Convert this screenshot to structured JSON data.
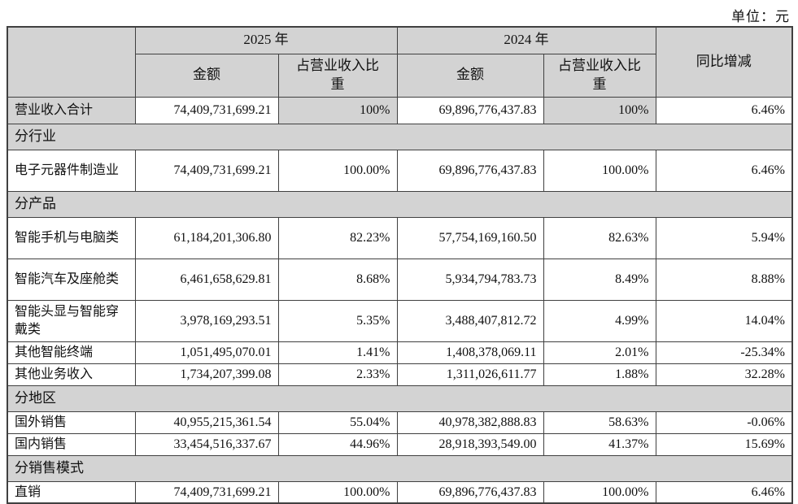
{
  "unit_label": "单位：元",
  "table": {
    "headers": {
      "year_2025": "2025 年",
      "year_2024": "2024 年",
      "amount": "金额",
      "pct_of_revenue": "占营业收入比重",
      "yoy": "同比增减"
    },
    "rows": [
      {
        "type": "data",
        "label": "营业收入合计",
        "amount_2025": "74,409,731,699.21",
        "pct_2025": "100%",
        "amount_2024": "69,896,776,437.83",
        "pct_2024": "100%",
        "yoy": "6.46%"
      },
      {
        "type": "section",
        "label": "分行业"
      },
      {
        "type": "data",
        "label": "电子元器件制造业",
        "amount_2025": "74,409,731,699.21",
        "pct_2025": "100.00%",
        "amount_2024": "69,896,776,437.83",
        "pct_2024": "100.00%",
        "yoy": "6.46%"
      },
      {
        "type": "section",
        "label": "分产品"
      },
      {
        "type": "data",
        "label": "智能手机与电脑类",
        "amount_2025": "61,184,201,306.80",
        "pct_2025": "82.23%",
        "amount_2024": "57,754,169,160.50",
        "pct_2024": "82.63%",
        "yoy": "5.94%"
      },
      {
        "type": "data",
        "label": "智能汽车及座舱类",
        "amount_2025": "6,461,658,629.81",
        "pct_2025": "8.68%",
        "amount_2024": "5,934,794,783.73",
        "pct_2024": "8.49%",
        "yoy": "8.88%"
      },
      {
        "type": "data",
        "label": "智能头显与智能穿戴类",
        "amount_2025": "3,978,169,293.51",
        "pct_2025": "5.35%",
        "amount_2024": "3,488,407,812.72",
        "pct_2024": "4.99%",
        "yoy": "14.04%"
      },
      {
        "type": "data",
        "label": "其他智能终端",
        "amount_2025": "1,051,495,070.01",
        "pct_2025": "1.41%",
        "amount_2024": "1,408,378,069.11",
        "pct_2024": "2.01%",
        "yoy": "-25.34%"
      },
      {
        "type": "data",
        "label": "其他业务收入",
        "amount_2025": "1,734,207,399.08",
        "pct_2025": "2.33%",
        "amount_2024": "1,311,026,611.77",
        "pct_2024": "1.88%",
        "yoy": "32.28%"
      },
      {
        "type": "section",
        "label": "分地区"
      },
      {
        "type": "data",
        "label": "国外销售",
        "amount_2025": "40,955,215,361.54",
        "pct_2025": "55.04%",
        "amount_2024": "40,978,382,888.83",
        "pct_2024": "58.63%",
        "yoy": "-0.06%"
      },
      {
        "type": "data",
        "label": "国内销售",
        "amount_2025": "33,454,516,337.67",
        "pct_2025": "44.96%",
        "amount_2024": "28,918,393,549.00",
        "pct_2024": "41.37%",
        "yoy": "15.69%"
      },
      {
        "type": "section",
        "label": "分销售模式"
      },
      {
        "type": "data",
        "label": "直销",
        "amount_2025": "74,409,731,699.21",
        "pct_2025": "100.00%",
        "amount_2024": "69,896,776,437.83",
        "pct_2024": "100.00%",
        "yoy": "6.46%"
      }
    ],
    "colors": {
      "header_bg": "#d3d3d3",
      "border": "#404040",
      "cell_bg": "#ffffff"
    }
  }
}
